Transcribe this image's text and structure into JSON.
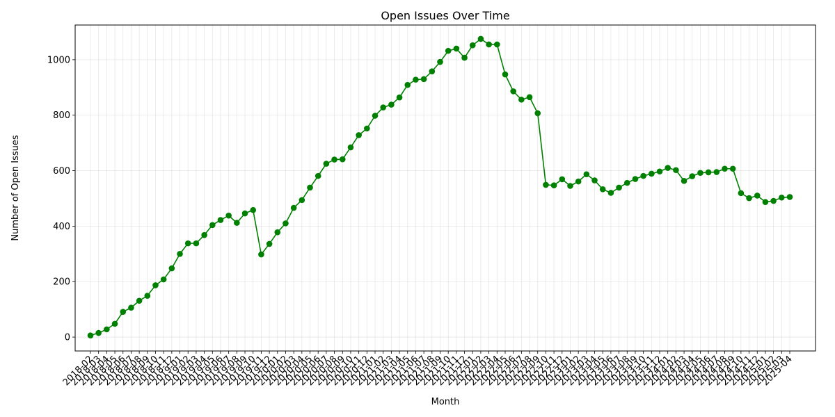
{
  "chart_data": {
    "type": "line",
    "title": "Open Issues Over Time",
    "xlabel": "Month",
    "ylabel": "Number of Open Issues",
    "ylim": [
      -50,
      1125
    ],
    "yticks": [
      0,
      200,
      400,
      600,
      800,
      1000
    ],
    "grid": true,
    "color": "#008000",
    "categories": [
      "2018-02",
      "2018-03",
      "2018-04",
      "2018-05",
      "2018-06",
      "2018-07",
      "2018-08",
      "2018-09",
      "2018-10",
      "2018-11",
      "2018-12",
      "2019-01",
      "2019-02",
      "2019-03",
      "2019-04",
      "2019-05",
      "2019-06",
      "2019-07",
      "2019-08",
      "2019-09",
      "2019-10",
      "2019-11",
      "2019-12",
      "2020-01",
      "2020-02",
      "2020-03",
      "2020-04",
      "2020-05",
      "2020-06",
      "2020-07",
      "2020-08",
      "2020-09",
      "2020-10",
      "2020-11",
      "2020-12",
      "2021-01",
      "2021-02",
      "2021-03",
      "2021-04",
      "2021-05",
      "2021-06",
      "2021-07",
      "2021-08",
      "2021-09",
      "2021-10",
      "2021-11",
      "2021-12",
      "2022-01",
      "2022-02",
      "2022-03",
      "2022-04",
      "2022-05",
      "2022-06",
      "2022-07",
      "2022-08",
      "2022-09",
      "2022-10",
      "2022-11",
      "2022-12",
      "2023-01",
      "2023-02",
      "2023-03",
      "2023-04",
      "2023-05",
      "2023-06",
      "2023-07",
      "2023-08",
      "2023-09",
      "2023-10",
      "2023-11",
      "2023-12",
      "2024-01",
      "2024-02",
      "2024-03",
      "2024-04",
      "2024-05",
      "2024-06",
      "2024-07",
      "2024-08",
      "2024-09",
      "2024-10",
      "2024-11",
      "2024-12",
      "2025-01",
      "2025-02",
      "2025-03",
      "2025-04"
    ],
    "series": [
      {
        "values": [
          6,
          15,
          28,
          48,
          91,
          106,
          131,
          149,
          187,
          208,
          248,
          300,
          338,
          338,
          368,
          404,
          422,
          438,
          412,
          446,
          458,
          298,
          336,
          378,
          410,
          466,
          494,
          539,
          581,
          625,
          640,
          641,
          684,
          728,
          752,
          798,
          828,
          838,
          864,
          909,
          928,
          930,
          958,
          992,
          1032,
          1040,
          1007,
          1052,
          1075,
          1055,
          1055,
          947,
          886,
          856,
          865,
          807,
          549,
          547,
          569,
          545,
          561,
          587,
          565,
          533,
          520,
          539,
          556,
          570,
          581,
          589,
          597,
          610,
          602,
          563,
          580,
          592,
          594,
          595,
          607,
          607,
          519,
          501,
          510,
          487,
          491,
          503,
          505
        ]
      }
    ],
    "xtick_labels": [
      "2018-02",
      "2018-03",
      "2018-04",
      "2018-05",
      "2018-06",
      "2018-07",
      "2018-08",
      "2018-09",
      "2018-10",
      "2018-11",
      "2018-12",
      "2019-01",
      "2019-02",
      "2019-03",
      "2019-04",
      "2019-05",
      "2019-06",
      "2019-07",
      "2019-08",
      "2019-09",
      "2019-10",
      "2019-11",
      "2019-12",
      "2020-01",
      "2020-02",
      "2020-03",
      "2020-04",
      "2020-05",
      "2020-06",
      "2020-07",
      "2020-08",
      "2020-09",
      "2020-10",
      "2020-11",
      "2020-12",
      "2021-01",
      "2021-02",
      "2021-03",
      "2021-04",
      "2021-05",
      "2021-06",
      "2021-07",
      "2021-08",
      "2021-09",
      "2021-10",
      "2021-11",
      "2021-12",
      "2022-01",
      "2022-02",
      "2022-03",
      "2022-04",
      "2022-05",
      "2022-06",
      "2022-07",
      "2022-08",
      "2022-09",
      "2022-10",
      "2022-11",
      "2022-12",
      "2023-01",
      "2023-02",
      "2023-03",
      "2023-04",
      "2023-05",
      "2023-06",
      "2023-07",
      "2023-08",
      "2023-09",
      "2023-10",
      "2023-11",
      "2023-12",
      "2024-01",
      "2024-02",
      "2024-03",
      "2024-04",
      "2024-05",
      "2024-06",
      "2024-07",
      "2024-08",
      "2024-09",
      "2024-10",
      "2024-11",
      "2024-12",
      "2025-01",
      "2025-02",
      "2025-03",
      "2025-04"
    ]
  }
}
